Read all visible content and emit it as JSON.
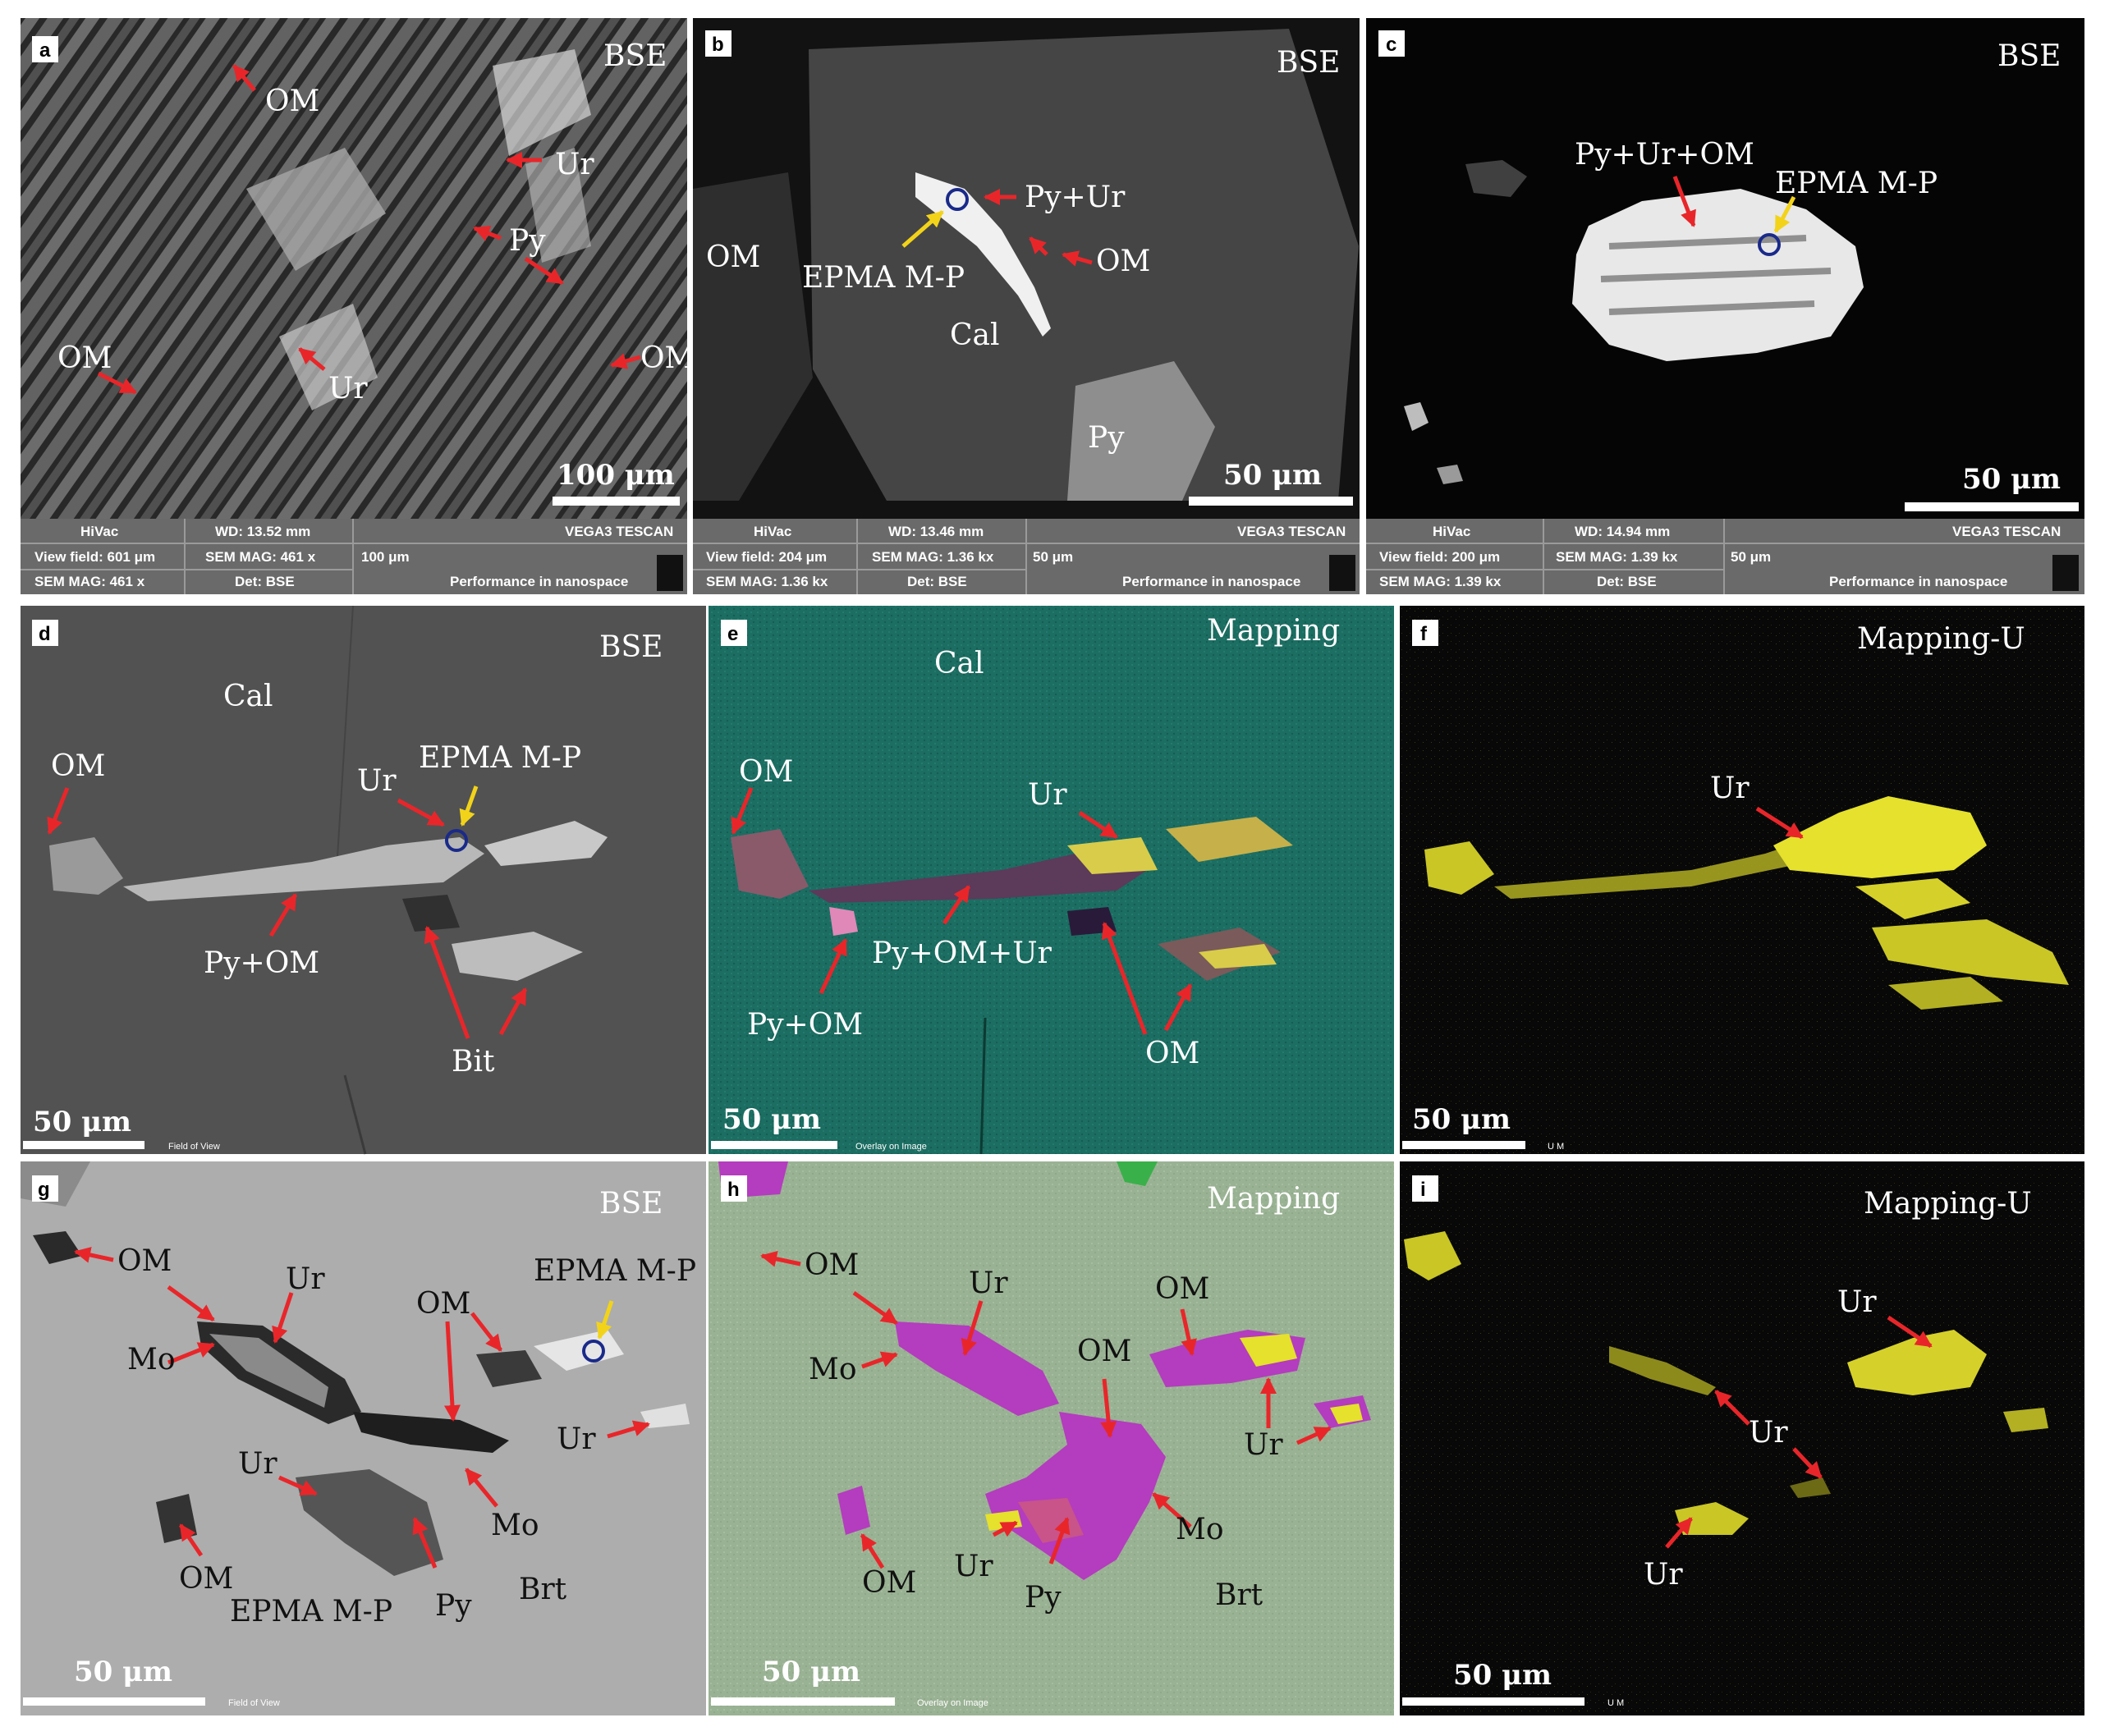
{
  "colors": {
    "arrow_red": "#e8262a",
    "arrow_yellow": "#f2d31a",
    "bse_dark": "#111111",
    "cal_gray": "#525252",
    "teal_map": "#1c6d62",
    "green_map": "#9ab294",
    "uranium_yellow": "#e5e12c",
    "organic_magenta": "#b43cbe",
    "meta_bar": "#6a6a6a"
  },
  "panels": {
    "a": {
      "letter": "a",
      "mode": "BSE",
      "scale": "100 μm",
      "labels": {
        "om1": "OM",
        "ur1": "Ur",
        "py": "Py",
        "om2": "OM",
        "ur2": "Ur",
        "om3": "OM"
      },
      "meta": {
        "hivac": "HiVac",
        "wd": "WD: 13.52 mm",
        "vega": "VEGA3 TESCAN",
        "view": "View field: 601 μm",
        "mag": "SEM MAG: 461 x",
        "scale": "100 μm",
        "mag2": "SEM MAG: 461 x",
        "det": "Det: BSE",
        "perf": "Performance in nanospace"
      }
    },
    "b": {
      "letter": "b",
      "mode": "BSE",
      "scale": "50 μm",
      "labels": {
        "pyur": "Py+Ur",
        "om1": "OM",
        "om2": "OM",
        "epma": "EPMA M-P",
        "cal": "Cal",
        "py": "Py"
      },
      "meta": {
        "hivac": "HiVac",
        "wd": "WD: 13.46 mm",
        "vega": "VEGA3 TESCAN",
        "view": "View field: 204 μm",
        "mag": "SEM MAG: 1.36 kx",
        "scale": "50 μm",
        "mag2": "SEM MAG: 1.36 kx",
        "det": "Det: BSE",
        "perf": "Performance in nanospace"
      }
    },
    "c": {
      "letter": "c",
      "mode": "BSE",
      "scale": "50 μm",
      "labels": {
        "pyurom": "Py+Ur+OM",
        "epma": "EPMA M-P"
      },
      "meta": {
        "hivac": "HiVac",
        "wd": "WD: 14.94 mm",
        "vega": "VEGA3 TESCAN",
        "view": "View field: 200 μm",
        "mag": "SEM MAG: 1.39 kx",
        "scale": "50 μm",
        "mag2": "SEM MAG: 1.39 kx",
        "det": "Det: BSE",
        "perf": "Performance in nanospace"
      }
    },
    "d": {
      "letter": "d",
      "mode": "BSE",
      "scale": "50 μm",
      "footer": "Field of View",
      "labels": {
        "cal": "Cal",
        "om": "OM",
        "ur": "Ur",
        "epma": "EPMA M-P",
        "pyom": "Py+OM",
        "bit": "Bit"
      }
    },
    "e": {
      "letter": "e",
      "mode": "Mapping",
      "scale": "50 μm",
      "footer": "Overlay on Image",
      "labels": {
        "cal": "Cal",
        "om1": "OM",
        "ur": "Ur",
        "pyomur": "Py+OM+Ur",
        "pyom": "Py+OM",
        "om2": "OM"
      }
    },
    "f": {
      "letter": "f",
      "mode": "Mapping-U",
      "scale": "50 μm",
      "footer": "U M",
      "labels": {
        "ur": "Ur"
      }
    },
    "g": {
      "letter": "g",
      "mode": "BSE",
      "scale": "50 μm",
      "footer": "Field of View",
      "labels": {
        "om1": "OM",
        "ur1": "Ur",
        "om2": "OM",
        "epma1": "EPMA M-P",
        "mo1": "Mo",
        "ur2": "Ur",
        "ur3": "Ur",
        "mo2": "Mo",
        "om3": "OM",
        "epma2": "EPMA M-P",
        "py": "Py",
        "brt": "Brt"
      }
    },
    "h": {
      "letter": "h",
      "mode": "Mapping",
      "scale": "50 μm",
      "footer": "Overlay on Image",
      "labels": {
        "om1": "OM",
        "ur1": "Ur",
        "om2": "OM",
        "mo1": "Mo",
        "om3": "OM",
        "ur2": "Ur",
        "om4": "OM",
        "ur3": "Ur",
        "mo2": "Mo",
        "py": "Py",
        "brt": "Brt"
      }
    },
    "i": {
      "letter": "i",
      "mode": "Mapping-U",
      "scale": "50 μm",
      "footer": "U M",
      "labels": {
        "ur1": "Ur",
        "ur2": "Ur",
        "ur3": "Ur"
      }
    }
  }
}
